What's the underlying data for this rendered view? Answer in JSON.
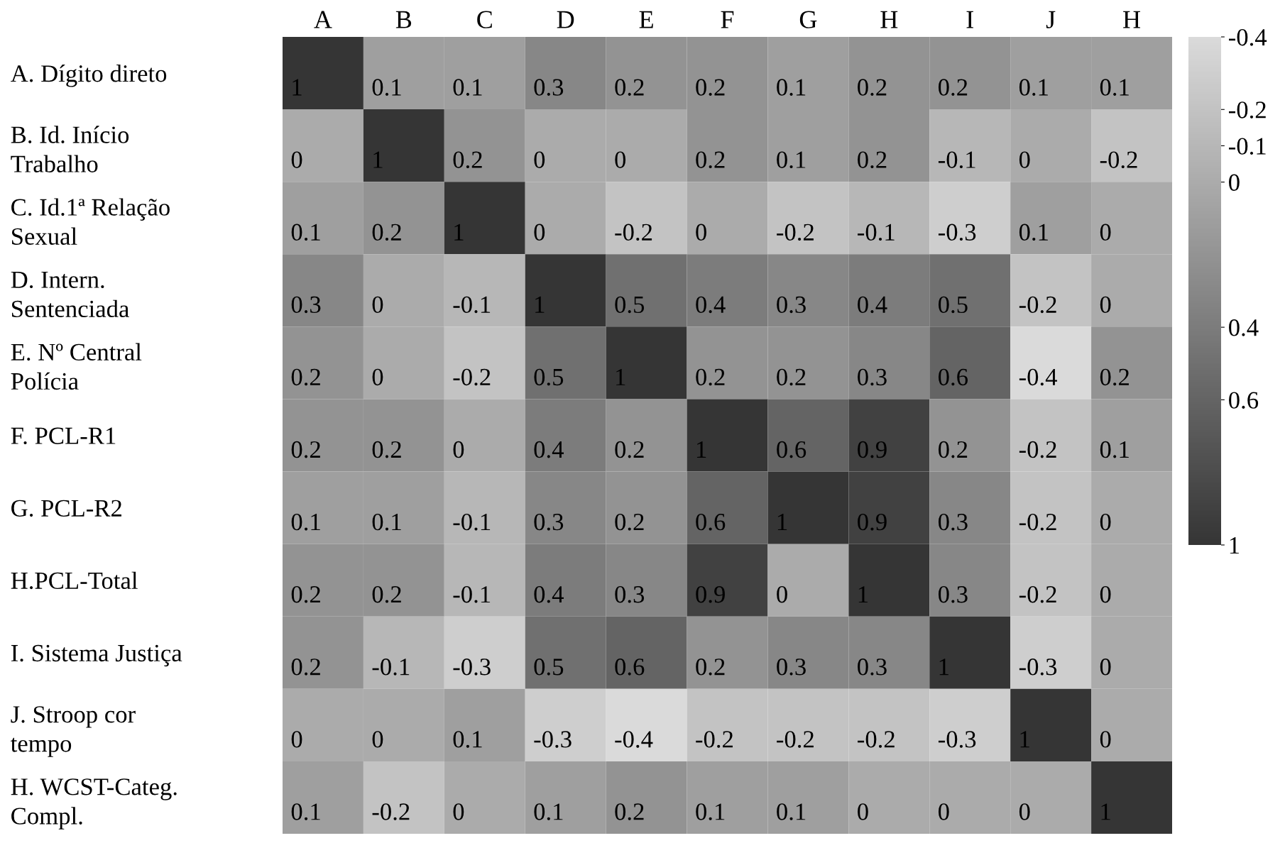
{
  "chart_data": {
    "type": "heatmap",
    "categories": [
      "A",
      "B",
      "C",
      "D",
      "E",
      "F",
      "G",
      "H",
      "I",
      "J",
      "H"
    ],
    "y_categories": [
      "A. Dígito direto",
      "B. Id. Início\nTrabalho",
      "C. Id.1ª Relação\nSexual",
      "D. Intern.\nSentenciada",
      "E. Nº Central\nPolícia",
      "F. PCL-R1",
      "G. PCL-R2",
      "H.PCL-Total",
      "I. Sistema Justiça",
      "J. Stroop cor\ntempo",
      "H. WCST-Categ.\nCompl."
    ],
    "cells": [
      [
        1,
        0.1,
        0.1,
        0.3,
        0.2,
        0.2,
        0.1,
        0.2,
        0.2,
        0.1,
        0.1
      ],
      [
        0,
        1,
        0.2,
        0,
        0,
        0.2,
        0.1,
        0.2,
        -0.1,
        0,
        -0.2
      ],
      [
        0.1,
        0.2,
        1,
        0,
        -0.2,
        0,
        -0.2,
        -0.1,
        -0.3,
        0.1,
        0
      ],
      [
        0.3,
        0,
        -0.1,
        1,
        0.5,
        0.4,
        0.3,
        0.4,
        0.5,
        -0.2,
        0
      ],
      [
        0.2,
        0,
        -0.2,
        0.5,
        1,
        0.2,
        0.2,
        0.3,
        0.6,
        -0.4,
        0.2
      ],
      [
        0.2,
        0.2,
        0,
        0.4,
        0.2,
        1,
        0.6,
        0.9,
        0.2,
        -0.2,
        0.1
      ],
      [
        0.1,
        0.1,
        -0.1,
        0.3,
        0.2,
        0.6,
        1,
        0.9,
        0.3,
        -0.2,
        0
      ],
      [
        0.2,
        0.2,
        -0.1,
        0.4,
        0.3,
        0.9,
        0,
        1,
        0.3,
        -0.2,
        0
      ],
      [
        0.2,
        -0.1,
        -0.3,
        0.5,
        0.6,
        0.2,
        0.3,
        0.3,
        1,
        -0.3,
        0
      ],
      [
        0,
        0,
        0.1,
        -0.3,
        -0.4,
        -0.2,
        -0.2,
        -0.2,
        -0.3,
        1,
        0
      ],
      [
        0.1,
        -0.2,
        0,
        0.1,
        0.2,
        0.1,
        0.1,
        0,
        0,
        0,
        1
      ]
    ],
    "data_labels": true,
    "clim": [
      -0.4,
      1
    ],
    "cticks": [
      -0.4,
      -0.2,
      -0.1,
      0,
      0.4,
      0.6,
      1
    ]
  }
}
